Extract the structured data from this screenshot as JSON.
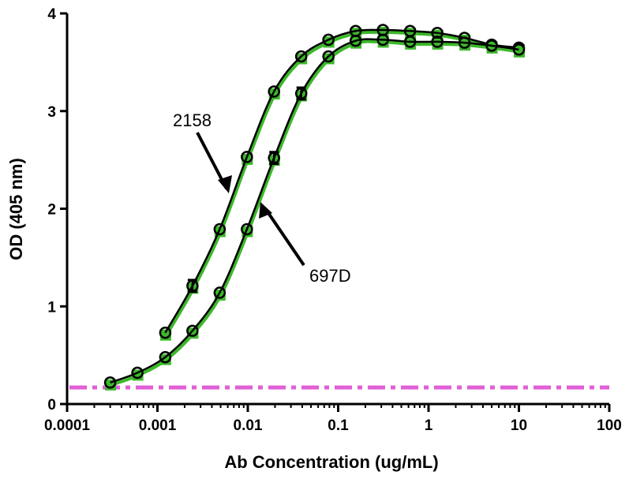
{
  "chart_data": {
    "type": "line",
    "xscale": "log",
    "xlabel": "Ab Concentration (ug/mL)",
    "ylabel": "OD (405 nm)",
    "xlim": [
      0.0001,
      100
    ],
    "ylim": [
      0,
      4
    ],
    "x_ticks": [
      0.0001,
      0.001,
      0.01,
      0.1,
      1,
      10,
      100
    ],
    "x_tick_labels": [
      "0.0001",
      "0.001",
      "0.01",
      "0.1",
      "1",
      "10",
      "100"
    ],
    "y_ticks": [
      0,
      1,
      2,
      3,
      4
    ],
    "y_tick_labels": [
      "0",
      "1",
      "2",
      "3",
      "4"
    ],
    "grid": false,
    "colors": {
      "curve": "#000000",
      "square_marker": "#3cb82a",
      "baseline": "#e05fd6"
    },
    "baseline": {
      "y": 0.17,
      "style": "dash-dot"
    },
    "series": [
      {
        "name": "2158",
        "x": [
          0.00122,
          0.00244,
          0.00488,
          0.00977,
          0.0195,
          0.039,
          0.078,
          0.156,
          0.3125,
          0.625,
          1.25,
          2.5,
          5,
          10
        ],
        "values": [
          0.73,
          1.21,
          1.79,
          2.53,
          3.2,
          3.56,
          3.73,
          3.82,
          3.83,
          3.82,
          3.8,
          3.75,
          3.68,
          3.65
        ],
        "errors": [
          0.02,
          0.06,
          0.02,
          0.02,
          0.03,
          0.02,
          0.02,
          0.02,
          0.02,
          0.02,
          0.02,
          0.02,
          0.02,
          0.02
        ]
      },
      {
        "name": "697D",
        "x": [
          0.0003,
          0.0006,
          0.00122,
          0.00244,
          0.00488,
          0.00977,
          0.0195,
          0.039,
          0.078,
          0.156,
          0.3125,
          0.625,
          1.25,
          2.5,
          5,
          10
        ],
        "values": [
          0.22,
          0.32,
          0.48,
          0.75,
          1.14,
          1.79,
          2.52,
          3.18,
          3.56,
          3.72,
          3.73,
          3.71,
          3.71,
          3.7,
          3.67,
          3.63
        ],
        "errors": [
          0.02,
          0.02,
          0.02,
          0.02,
          0.02,
          0.02,
          0.06,
          0.06,
          0.02,
          0.02,
          0.02,
          0.02,
          0.02,
          0.02,
          0.02,
          0.02
        ]
      }
    ],
    "annotations": [
      {
        "text": "2158",
        "points_to": {
          "x": 0.0058,
          "y": 2.2
        }
      },
      {
        "text": "697D",
        "points_to": {
          "x": 0.0135,
          "y": 2.05
        }
      }
    ]
  }
}
